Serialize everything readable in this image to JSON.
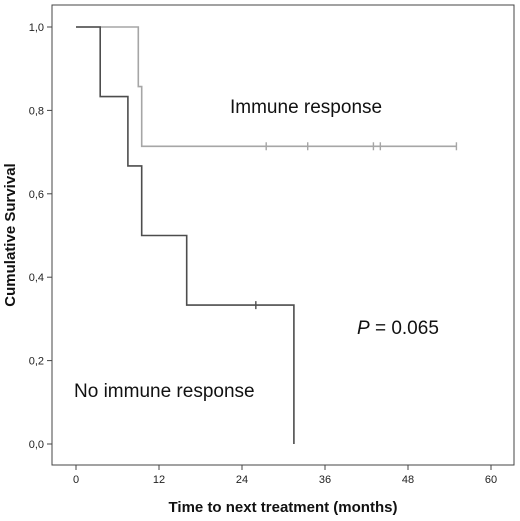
{
  "chart_data": {
    "type": "line",
    "title": "",
    "xlabel": "Time to next treatment (months)",
    "ylabel": "Cumulative Survival",
    "xlim": [
      0,
      60
    ],
    "ylim": [
      0,
      1
    ],
    "x_ticks": [
      0,
      12,
      24,
      36,
      48,
      60
    ],
    "y_ticks": [
      "0,0",
      "0,2",
      "0,4",
      "0,6",
      "0,8",
      "1,0"
    ],
    "y_tick_values": [
      0,
      0.2,
      0.4,
      0.6,
      0.8,
      1.0
    ],
    "grid": false,
    "series": [
      {
        "name": "Immune response",
        "color": "#a6a6a6",
        "step_x": [
          0,
          9,
          9,
          9.5,
          9.5,
          55
        ],
        "step_y": [
          1.0,
          1.0,
          0.857,
          0.857,
          0.714,
          0.714
        ],
        "censored_x": [
          27.5,
          33.5,
          43,
          44,
          55
        ],
        "censored_y": [
          0.714,
          0.714,
          0.714,
          0.714,
          0.714
        ]
      },
      {
        "name": "No immune response",
        "color": "#4d4d4d",
        "step_x": [
          0,
          3.5,
          3.5,
          7.5,
          7.5,
          9.5,
          9.5,
          16,
          16,
          31.5,
          31.5
        ],
        "step_y": [
          1.0,
          1.0,
          0.833,
          0.833,
          0.667,
          0.667,
          0.5,
          0.5,
          0.333,
          0.333,
          0.0
        ],
        "censored_x": [
          26
        ],
        "censored_y": [
          0.333
        ]
      }
    ],
    "annotations": {
      "immune_label": "Immune response",
      "no_immune_label": "No immune response",
      "p_symbol": "P",
      "p_value": " = 0.065"
    }
  }
}
